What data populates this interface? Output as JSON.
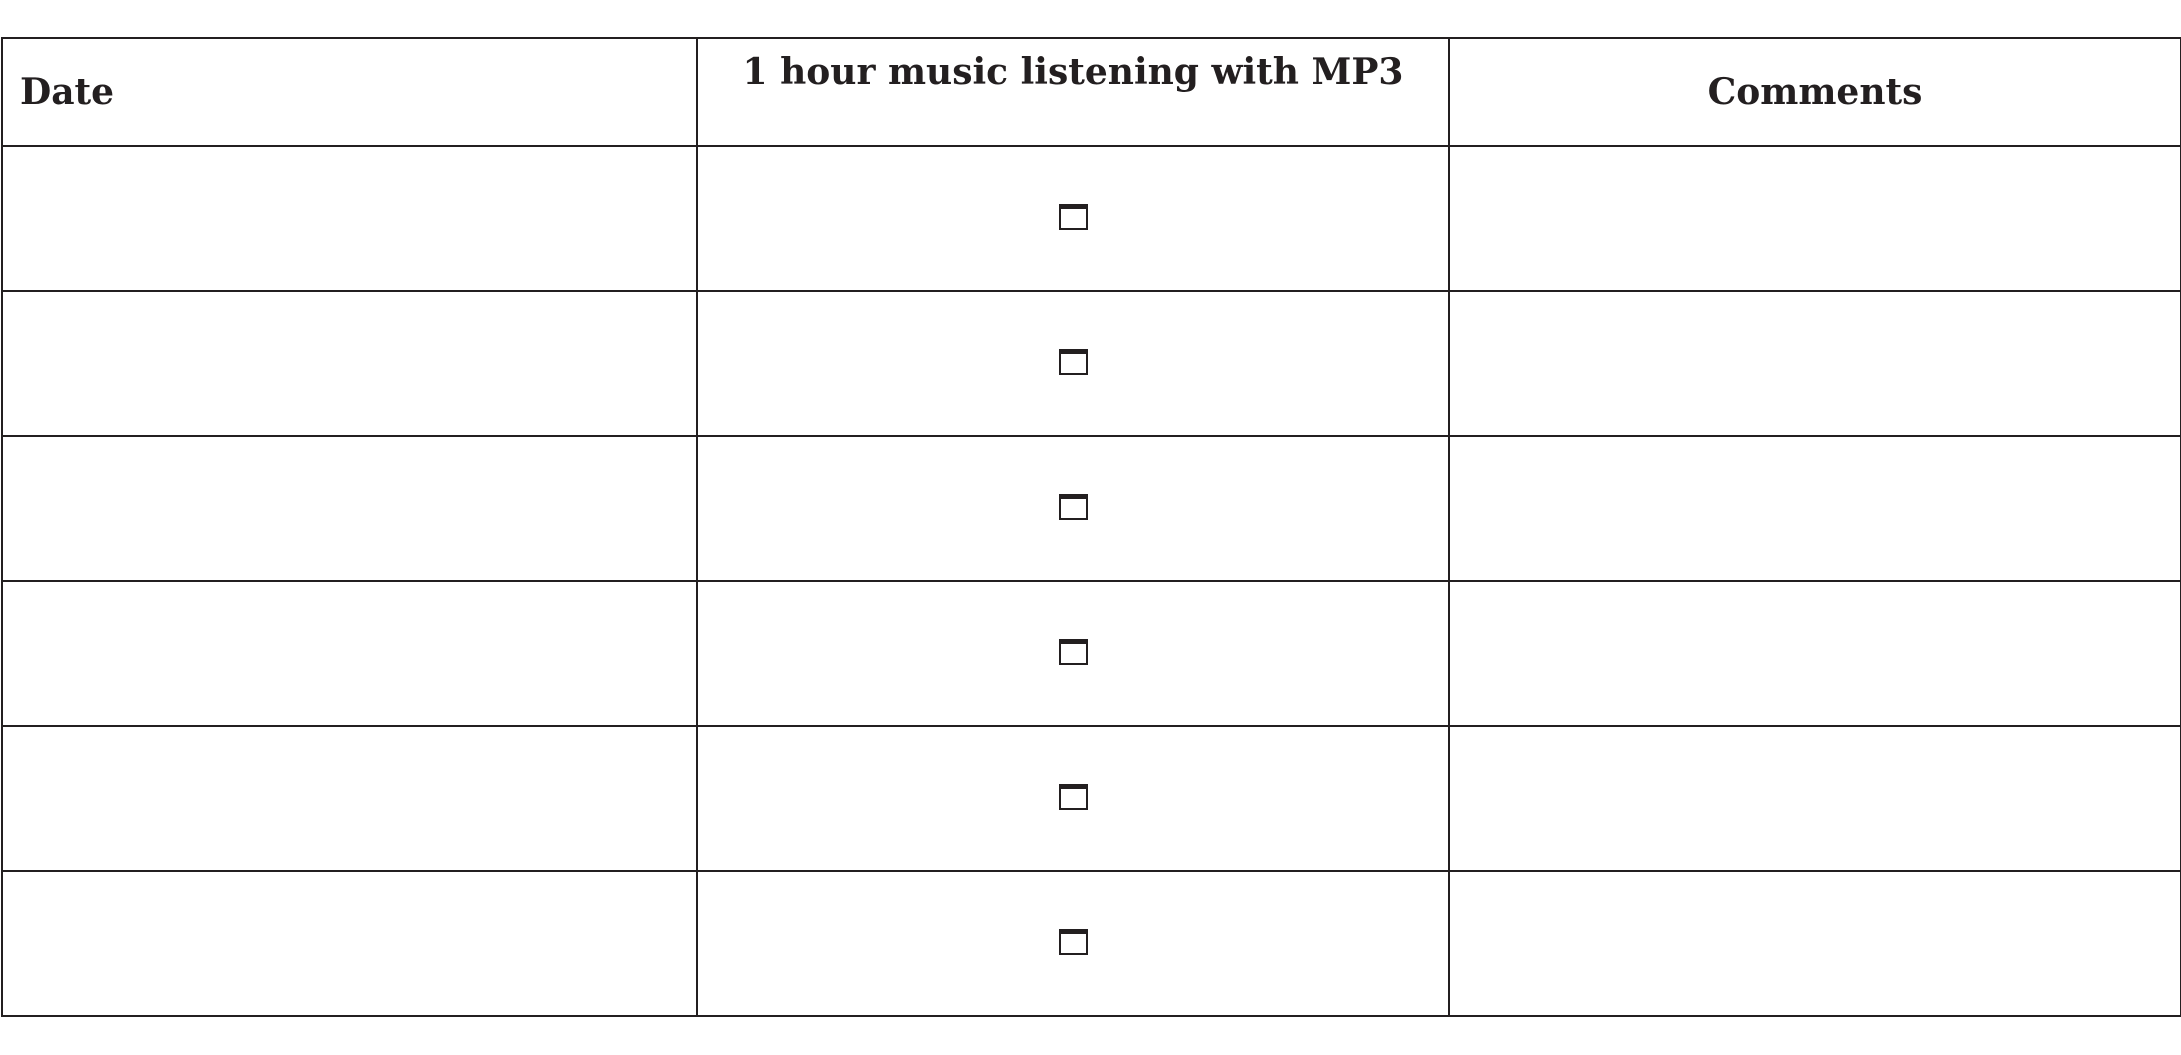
{
  "table": {
    "headers": [
      "Date",
      "1 hour music listening with MP3",
      "Comments"
    ],
    "rows": [
      {
        "date": "",
        "checked": false,
        "comment": ""
      },
      {
        "date": "",
        "checked": false,
        "comment": ""
      },
      {
        "date": "",
        "checked": false,
        "comment": ""
      },
      {
        "date": "",
        "checked": false,
        "comment": ""
      },
      {
        "date": "",
        "checked": false,
        "comment": ""
      },
      {
        "date": "",
        "checked": false,
        "comment": ""
      }
    ]
  }
}
